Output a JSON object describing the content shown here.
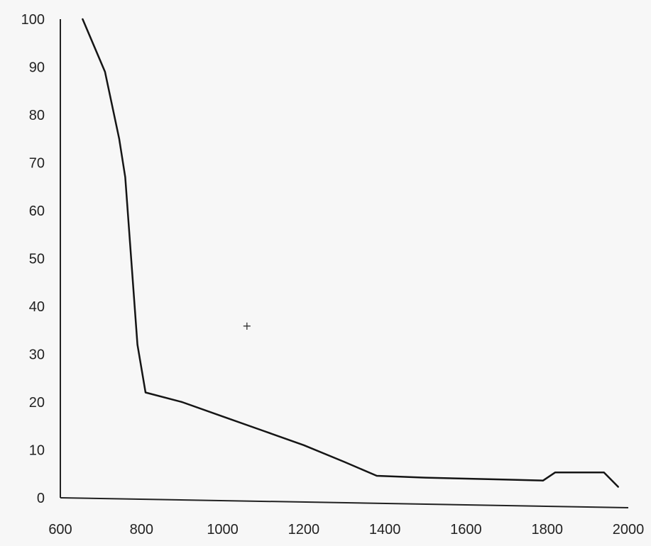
{
  "chart_data": {
    "type": "line",
    "title": "",
    "xlabel": "",
    "ylabel": "",
    "xlim": [
      600,
      2000
    ],
    "ylim": [
      0,
      100
    ],
    "grid": false,
    "legend": "none",
    "x_ticks": [
      "600",
      "800",
      "1000",
      "1200",
      "1400",
      "1600",
      "1800",
      "2000"
    ],
    "y_ticks": [
      "0",
      "10",
      "20",
      "30",
      "40",
      "50",
      "60",
      "70",
      "80",
      "90",
      "100"
    ],
    "series": [
      {
        "color": "#151515",
        "x": [
          655,
          710,
          745,
          760,
          790,
          810,
          900,
          1000,
          1100,
          1200,
          1300,
          1380,
          1500,
          1600,
          1700,
          1790,
          1820,
          1900,
          1940,
          1975
        ],
        "y": [
          100,
          89,
          75,
          67,
          32,
          22,
          20,
          17,
          14,
          11,
          7.5,
          4.6,
          4.2,
          4.0,
          3.8,
          3.6,
          5.3,
          5.3,
          5.3,
          2.3
        ]
      }
    ],
    "annotations": [
      {
        "text": "+",
        "x": 1060,
        "y": 36
      }
    ]
  }
}
